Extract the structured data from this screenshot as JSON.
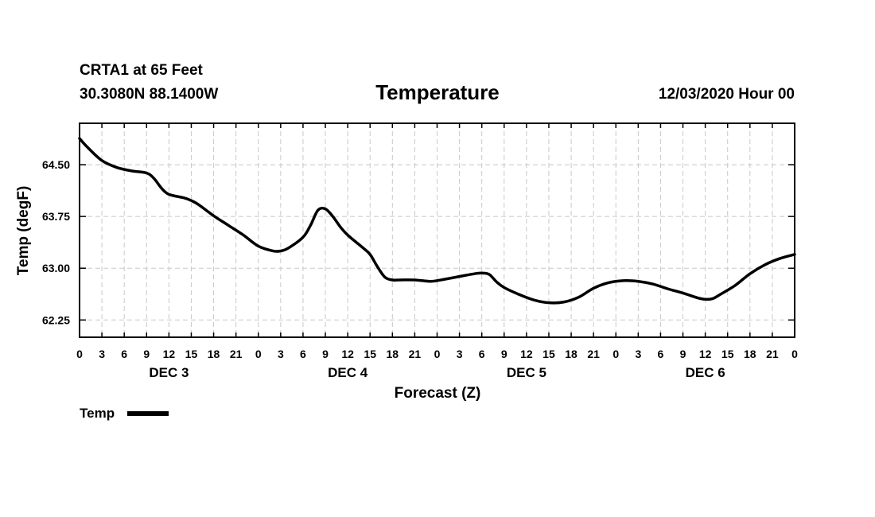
{
  "header": {
    "station": "CRTA1 at 65 Feet",
    "location": "30.3080N 88.1400W",
    "title": "Temperature",
    "timestamp": "12/03/2020 Hour 00"
  },
  "legend": {
    "label": "Temp",
    "color": "#000000"
  },
  "chart_data": {
    "type": "line",
    "title": "Temperature",
    "xlabel": "Forecast (Z)",
    "ylabel": "Temp (degF)",
    "xlim": [
      0,
      96
    ],
    "ylim": [
      62.0,
      65.1
    ],
    "y_ticks": [
      {
        "value": 62.25,
        "label": "62.25"
      },
      {
        "value": 63.0,
        "label": "63.00"
      },
      {
        "value": 63.75,
        "label": "63.75"
      },
      {
        "value": 64.5,
        "label": "64.50"
      }
    ],
    "x_ticks": [
      {
        "value": 0,
        "label": "0"
      },
      {
        "value": 3,
        "label": "3"
      },
      {
        "value": 6,
        "label": "6"
      },
      {
        "value": 9,
        "label": "9"
      },
      {
        "value": 12,
        "label": "12"
      },
      {
        "value": 15,
        "label": "15"
      },
      {
        "value": 18,
        "label": "18"
      },
      {
        "value": 21,
        "label": "21"
      },
      {
        "value": 24,
        "label": "0"
      },
      {
        "value": 27,
        "label": "3"
      },
      {
        "value": 30,
        "label": "6"
      },
      {
        "value": 33,
        "label": "9"
      },
      {
        "value": 36,
        "label": "12"
      },
      {
        "value": 39,
        "label": "15"
      },
      {
        "value": 42,
        "label": "18"
      },
      {
        "value": 45,
        "label": "21"
      },
      {
        "value": 48,
        "label": "0"
      },
      {
        "value": 51,
        "label": "3"
      },
      {
        "value": 54,
        "label": "6"
      },
      {
        "value": 57,
        "label": "9"
      },
      {
        "value": 60,
        "label": "12"
      },
      {
        "value": 63,
        "label": "15"
      },
      {
        "value": 66,
        "label": "18"
      },
      {
        "value": 69,
        "label": "21"
      },
      {
        "value": 72,
        "label": "0"
      },
      {
        "value": 75,
        "label": "3"
      },
      {
        "value": 78,
        "label": "6"
      },
      {
        "value": 81,
        "label": "9"
      },
      {
        "value": 84,
        "label": "12"
      },
      {
        "value": 87,
        "label": "15"
      },
      {
        "value": 90,
        "label": "18"
      },
      {
        "value": 93,
        "label": "21"
      },
      {
        "value": 96,
        "label": "0"
      }
    ],
    "day_labels": [
      {
        "value": 12,
        "label": "DEC 3"
      },
      {
        "value": 36,
        "label": "DEC 4"
      },
      {
        "value": 60,
        "label": "DEC 5"
      },
      {
        "value": 84,
        "label": "DEC 6"
      }
    ],
    "grid": true,
    "legend_position": "bottom-left",
    "series": [
      {
        "name": "Temp",
        "x": [
          0,
          1,
          3,
          5,
          7,
          9,
          10,
          11,
          12,
          14,
          15,
          16,
          18,
          20,
          22,
          24,
          26,
          27,
          28,
          30,
          31,
          32,
          33,
          34,
          35,
          36,
          38,
          39,
          40,
          41,
          42,
          43,
          45,
          47,
          48,
          49,
          51,
          53,
          54,
          55,
          56,
          57,
          59,
          61,
          63,
          65,
          67,
          69,
          71,
          73,
          75,
          77,
          79,
          81,
          83,
          84,
          85,
          86,
          88,
          90,
          92,
          94,
          96
        ],
        "y": [
          64.88,
          64.76,
          64.56,
          64.46,
          64.41,
          64.38,
          64.3,
          64.16,
          64.07,
          64.02,
          63.98,
          63.92,
          63.76,
          63.62,
          63.48,
          63.32,
          63.25,
          63.25,
          63.29,
          63.45,
          63.62,
          63.84,
          63.86,
          63.75,
          63.6,
          63.48,
          63.3,
          63.2,
          63.02,
          62.87,
          62.83,
          62.83,
          62.83,
          62.81,
          62.82,
          62.84,
          62.88,
          62.92,
          62.93,
          62.91,
          62.8,
          62.72,
          62.62,
          62.54,
          62.5,
          62.51,
          62.58,
          62.71,
          62.79,
          62.82,
          62.81,
          62.77,
          62.7,
          62.64,
          62.57,
          62.55,
          62.56,
          62.62,
          62.75,
          62.92,
          63.05,
          63.14,
          63.2
        ]
      }
    ]
  }
}
